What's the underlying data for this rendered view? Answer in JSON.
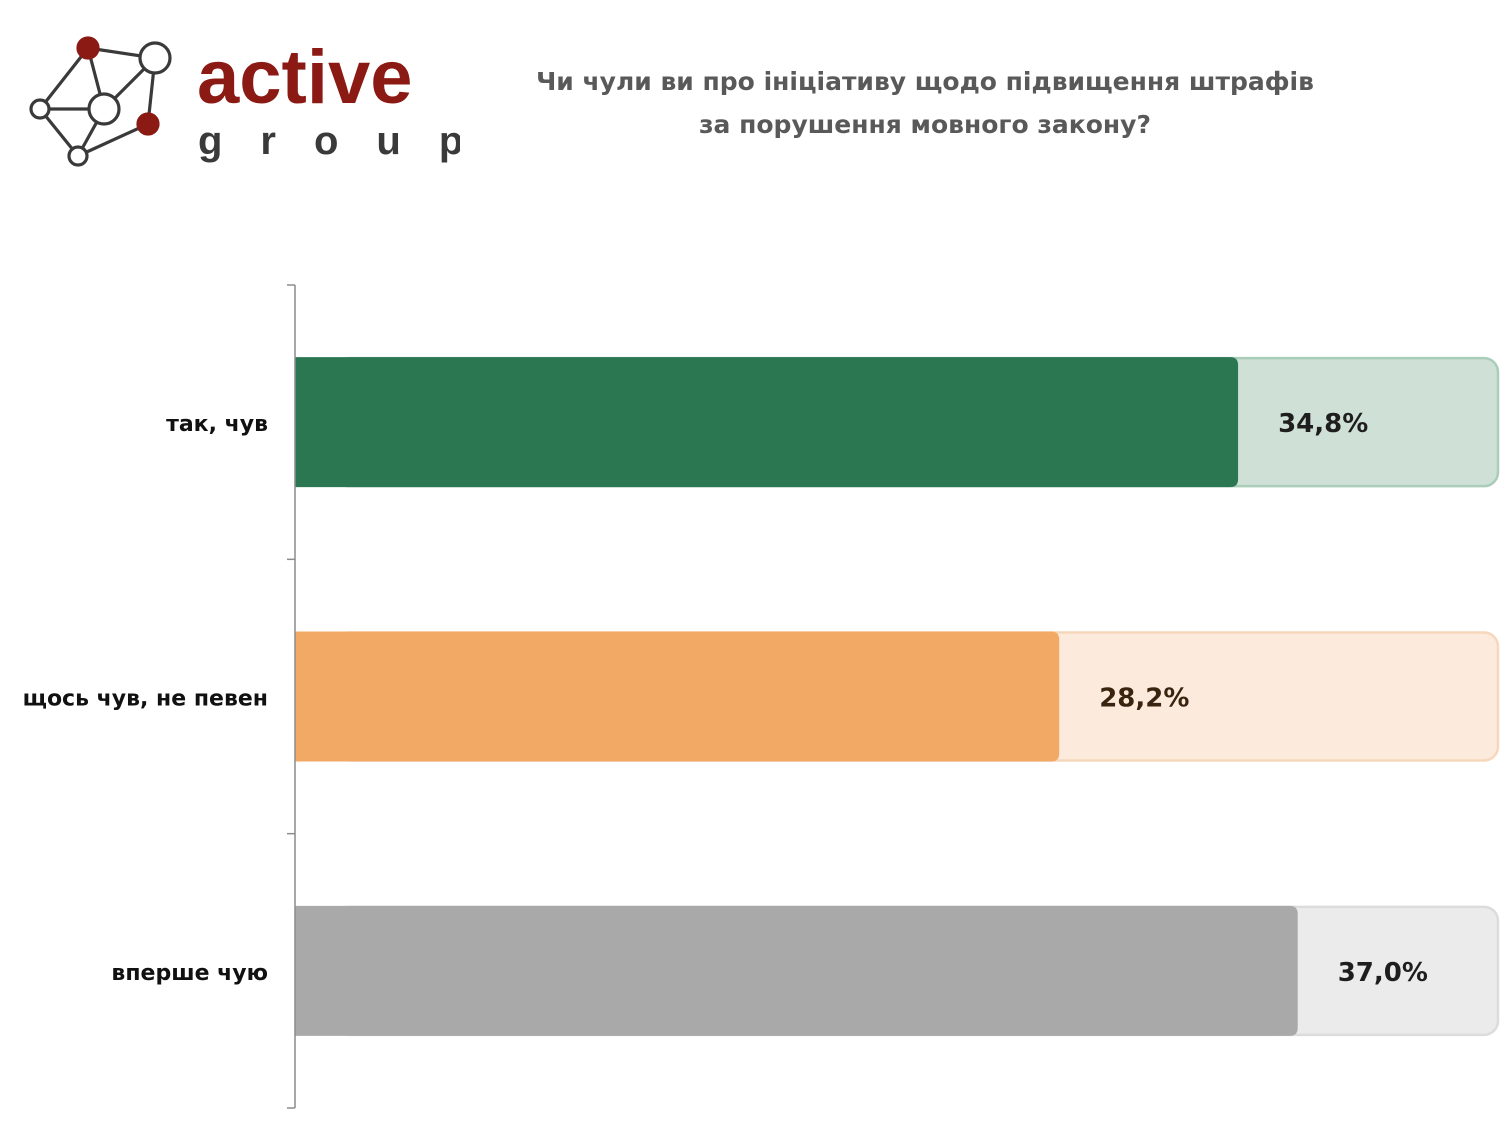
{
  "logo": {
    "brand_top": "active",
    "brand_bottom": "group",
    "colors": {
      "red": "#8b1a14",
      "gray": "#3a3a3a",
      "node_fill": "#ffffff",
      "node_red": "#8b1a14"
    }
  },
  "title": {
    "line1": "Чи чули ви про ініціативу щодо підвищення штрафів",
    "line2": "за порушення мовного закону?"
  },
  "chart_data": {
    "type": "bar",
    "orientation": "horizontal",
    "categories": [
      "так, чув",
      "щось чув, не певен",
      "вперше чую"
    ],
    "values": [
      34.8,
      28.2,
      37.0
    ],
    "value_labels": [
      "34,8%",
      "28,2%",
      "37,0%"
    ],
    "xlim": [
      0,
      40
    ],
    "grid": false,
    "legend": "none",
    "colors": [
      "#2a7752",
      "#f2a966",
      "#a9a9a9"
    ],
    "track_colors": [
      "#cfe0d7",
      "#fcebdc",
      "#ebebeb"
    ],
    "track_border_colors": [
      "#a9cdb9",
      "#f7d7bb",
      "#dcdcdc"
    ],
    "label_colors": [
      "#1e1e1e",
      "#3a2410",
      "#1e1e1e"
    ]
  }
}
